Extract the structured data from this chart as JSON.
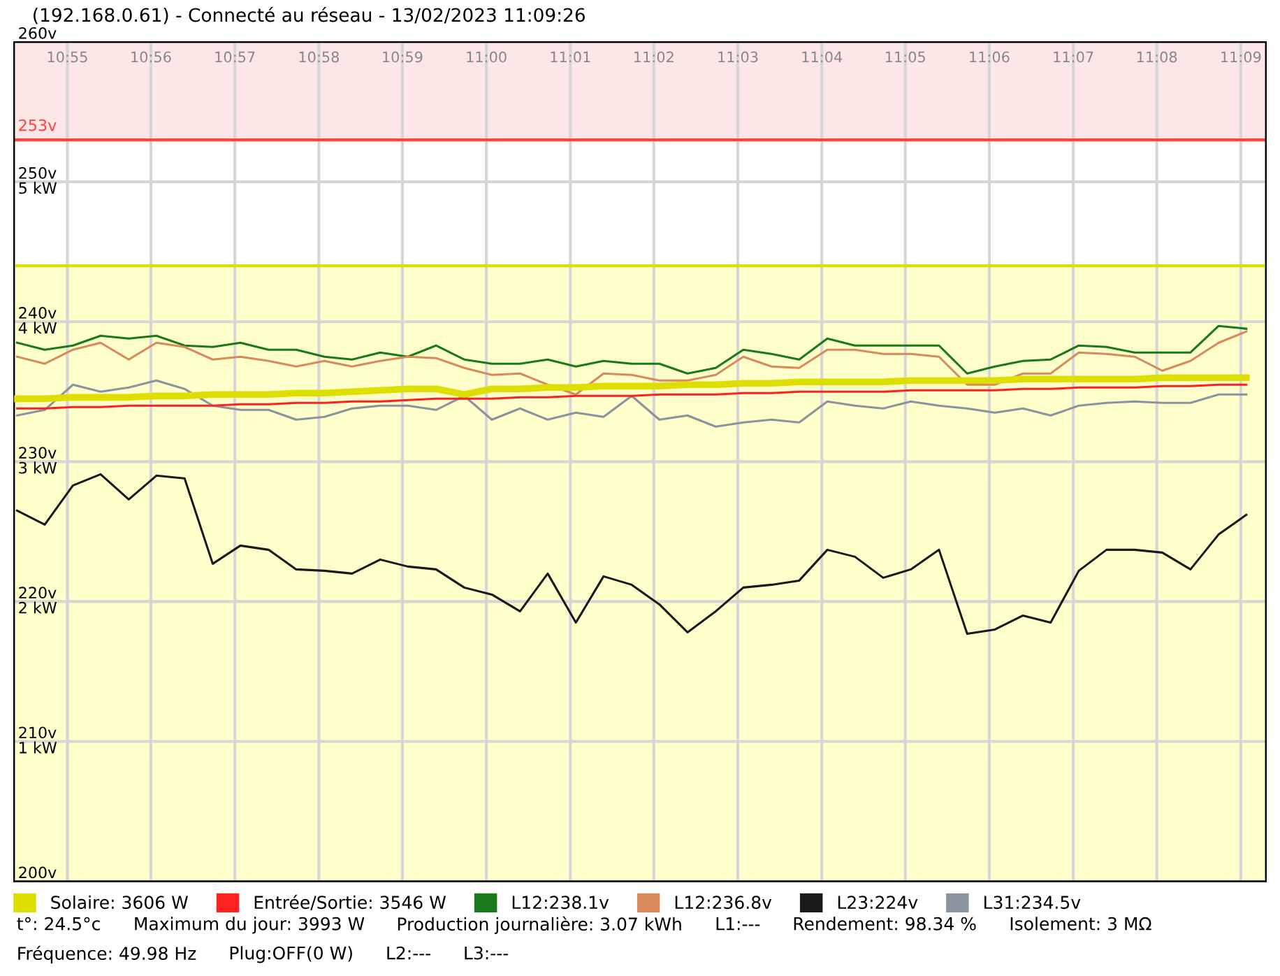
{
  "chart_data": {
    "type": "line",
    "title": "(192.168.0.61) - Connecté au réseau - 13/02/2023 11:09:26",
    "x": [
      10.9067,
      10.9122,
      10.9178,
      10.9233,
      10.9289,
      10.9344,
      10.94,
      10.9456,
      10.9511,
      10.9567,
      10.9622,
      10.9678,
      10.9733,
      10.9789,
      10.9844,
      10.99,
      10.9956,
      11.0011,
      11.0067,
      11.0122,
      11.0178,
      11.0233,
      11.0289,
      11.0344,
      11.04,
      11.0456,
      11.0511,
      11.0567,
      11.0622,
      11.0678,
      11.0733,
      11.0789,
      11.0844,
      11.09,
      11.0956,
      11.1011,
      11.1067,
      11.1122,
      11.1178,
      11.1233,
      11.1289,
      11.1344,
      11.14,
      11.1456,
      11.1511
    ],
    "xlim": [
      10.9061,
      11.155
    ],
    "xticks": [
      {
        "value": 10.9167,
        "label": "10:55"
      },
      {
        "value": 10.9333,
        "label": "10:56"
      },
      {
        "value": 10.95,
        "label": "10:57"
      },
      {
        "value": 10.9667,
        "label": "10:58"
      },
      {
        "value": 10.9833,
        "label": "10:59"
      },
      {
        "value": 11.0,
        "label": "11:00"
      },
      {
        "value": 11.0167,
        "label": "11:01"
      },
      {
        "value": 11.0333,
        "label": "11:02"
      },
      {
        "value": 11.05,
        "label": "11:03"
      },
      {
        "value": 11.0667,
        "label": "11:04"
      },
      {
        "value": 11.0833,
        "label": "11:05"
      },
      {
        "value": 11.1,
        "label": "11:06"
      },
      {
        "value": 11.1167,
        "label": "11:07"
      },
      {
        "value": 11.1333,
        "label": "11:08"
      },
      {
        "value": 11.15,
        "label": "11:09"
      }
    ],
    "ylim": [
      200,
      260
    ],
    "yticks": [
      {
        "value": 200,
        "label": "200v"
      },
      {
        "value": 210,
        "label": "210v"
      },
      {
        "value": 220,
        "label": "220v"
      },
      {
        "value": 230,
        "label": "230v"
      },
      {
        "value": 240,
        "label": "240v"
      },
      {
        "value": 250,
        "label": "250v"
      },
      {
        "value": 260,
        "label": "260v"
      }
    ],
    "y2lim": [
      0,
      6
    ],
    "y2ticks": [
      {
        "value": 1,
        "label": "1 kW"
      },
      {
        "value": 2,
        "label": "2 kW"
      },
      {
        "value": 3,
        "label": "3 kW"
      },
      {
        "value": 4,
        "label": "4 kW"
      },
      {
        "value": 5,
        "label": "5 kW"
      }
    ],
    "series": [
      {
        "name": "Solaire: 3606 W",
        "color": "#dede00",
        "axis": "y2",
        "values": [
          3.45,
          3.45,
          3.46,
          3.46,
          3.46,
          3.47,
          3.47,
          3.48,
          3.48,
          3.48,
          3.49,
          3.49,
          3.5,
          3.51,
          3.52,
          3.52,
          3.48,
          3.52,
          3.52,
          3.53,
          3.53,
          3.54,
          3.54,
          3.54,
          3.55,
          3.55,
          3.56,
          3.56,
          3.57,
          3.57,
          3.57,
          3.57,
          3.58,
          3.58,
          3.58,
          3.58,
          3.59,
          3.59,
          3.59,
          3.59,
          3.59,
          3.6,
          3.6,
          3.6,
          3.6
        ]
      },
      {
        "name": "Entrée/Sortie: 3546 W",
        "color": "#ff2020",
        "axis": "y2",
        "values": [
          3.38,
          3.38,
          3.39,
          3.39,
          3.4,
          3.4,
          3.4,
          3.4,
          3.41,
          3.41,
          3.42,
          3.42,
          3.43,
          3.43,
          3.44,
          3.45,
          3.45,
          3.45,
          3.46,
          3.46,
          3.47,
          3.47,
          3.47,
          3.48,
          3.48,
          3.48,
          3.49,
          3.49,
          3.5,
          3.5,
          3.5,
          3.5,
          3.51,
          3.51,
          3.51,
          3.51,
          3.52,
          3.52,
          3.53,
          3.53,
          3.53,
          3.54,
          3.54,
          3.55,
          3.55
        ]
      },
      {
        "name": "L12:238.1v",
        "color": "#1a7a1a",
        "values": [
          238.5,
          238.0,
          238.3,
          239.0,
          238.8,
          239.0,
          238.3,
          238.2,
          238.5,
          238.0,
          238.0,
          237.5,
          237.3,
          237.8,
          237.5,
          238.3,
          237.3,
          237.0,
          237.0,
          237.3,
          236.8,
          237.2,
          237.0,
          237.0,
          236.3,
          236.7,
          238.0,
          237.7,
          237.3,
          238.8,
          238.3,
          238.3,
          238.3,
          238.3,
          236.3,
          236.8,
          237.2,
          237.3,
          238.3,
          238.2,
          237.8,
          237.8,
          237.8,
          239.7,
          239.5
        ]
      },
      {
        "name": "L12:236.8v",
        "color": "#d98a5a",
        "values": [
          237.5,
          237.0,
          238.0,
          238.5,
          237.3,
          238.5,
          238.2,
          237.3,
          237.5,
          237.2,
          236.8,
          237.2,
          236.8,
          237.2,
          237.5,
          237.4,
          236.7,
          236.2,
          236.3,
          235.5,
          234.8,
          236.3,
          236.2,
          235.8,
          235.8,
          236.2,
          237.5,
          236.8,
          236.7,
          238.0,
          238.0,
          237.7,
          237.7,
          237.5,
          235.5,
          235.5,
          236.3,
          236.3,
          237.8,
          237.7,
          237.5,
          236.5,
          237.2,
          238.5,
          239.3
        ]
      },
      {
        "name": "L23:224v",
        "color": "#1a1a1a",
        "values": [
          226.5,
          225.5,
          228.3,
          229.1,
          227.3,
          229.0,
          228.8,
          222.7,
          224.0,
          223.7,
          222.3,
          222.2,
          222.0,
          223.0,
          222.5,
          222.3,
          221.0,
          220.5,
          219.3,
          222.0,
          218.5,
          221.8,
          221.2,
          219.8,
          217.8,
          219.3,
          221.0,
          221.2,
          221.5,
          223.7,
          223.2,
          221.7,
          222.3,
          223.7,
          217.7,
          218.0,
          219.0,
          218.5,
          222.2,
          223.7,
          223.7,
          223.5,
          222.3,
          224.8,
          226.2
        ]
      },
      {
        "name": "L31:234.5v",
        "color": "#8a949e",
        "values": [
          233.3,
          233.7,
          235.5,
          235.0,
          235.3,
          235.8,
          235.2,
          234.0,
          233.7,
          233.7,
          233.0,
          233.2,
          233.8,
          234.0,
          234.0,
          233.7,
          234.7,
          233.0,
          233.8,
          233.0,
          233.5,
          233.2,
          234.7,
          233.0,
          233.3,
          232.5,
          232.8,
          233.0,
          232.8,
          234.3,
          234.0,
          233.8,
          234.3,
          234.0,
          233.8,
          233.5,
          233.8,
          233.3,
          234.0,
          234.2,
          234.3,
          234.2,
          234.2,
          234.8,
          234.8
        ]
      }
    ],
    "ref_lines": [
      {
        "axis": "y",
        "value": 253,
        "label": "253v",
        "color": "#ff4040"
      },
      {
        "axis": "y2",
        "value": 4.4,
        "label": null,
        "color": "#dede00"
      }
    ],
    "bands": [
      {
        "axis": "y",
        "from": 253,
        "to": 260,
        "label": null,
        "color": "#fde6e6"
      },
      {
        "axis": "y",
        "from": 200,
        "to": 244,
        "label": null,
        "color": "#ffffcc"
      }
    ],
    "grid": true,
    "legend": "bottom",
    "marker": "none",
    "line_style": "solid",
    "annotations": [
      "t°: 24.5°c",
      "Maximum du jour: 3993 W",
      "Production journalière: 3.07 kWh",
      "L1:---",
      "Rendement: 98.34 %",
      "Isolement: 3 MΩ",
      "Fréquence: 49.98 Hz",
      "Plug:OFF(0 W)",
      "L2:---",
      "L3:---"
    ]
  }
}
